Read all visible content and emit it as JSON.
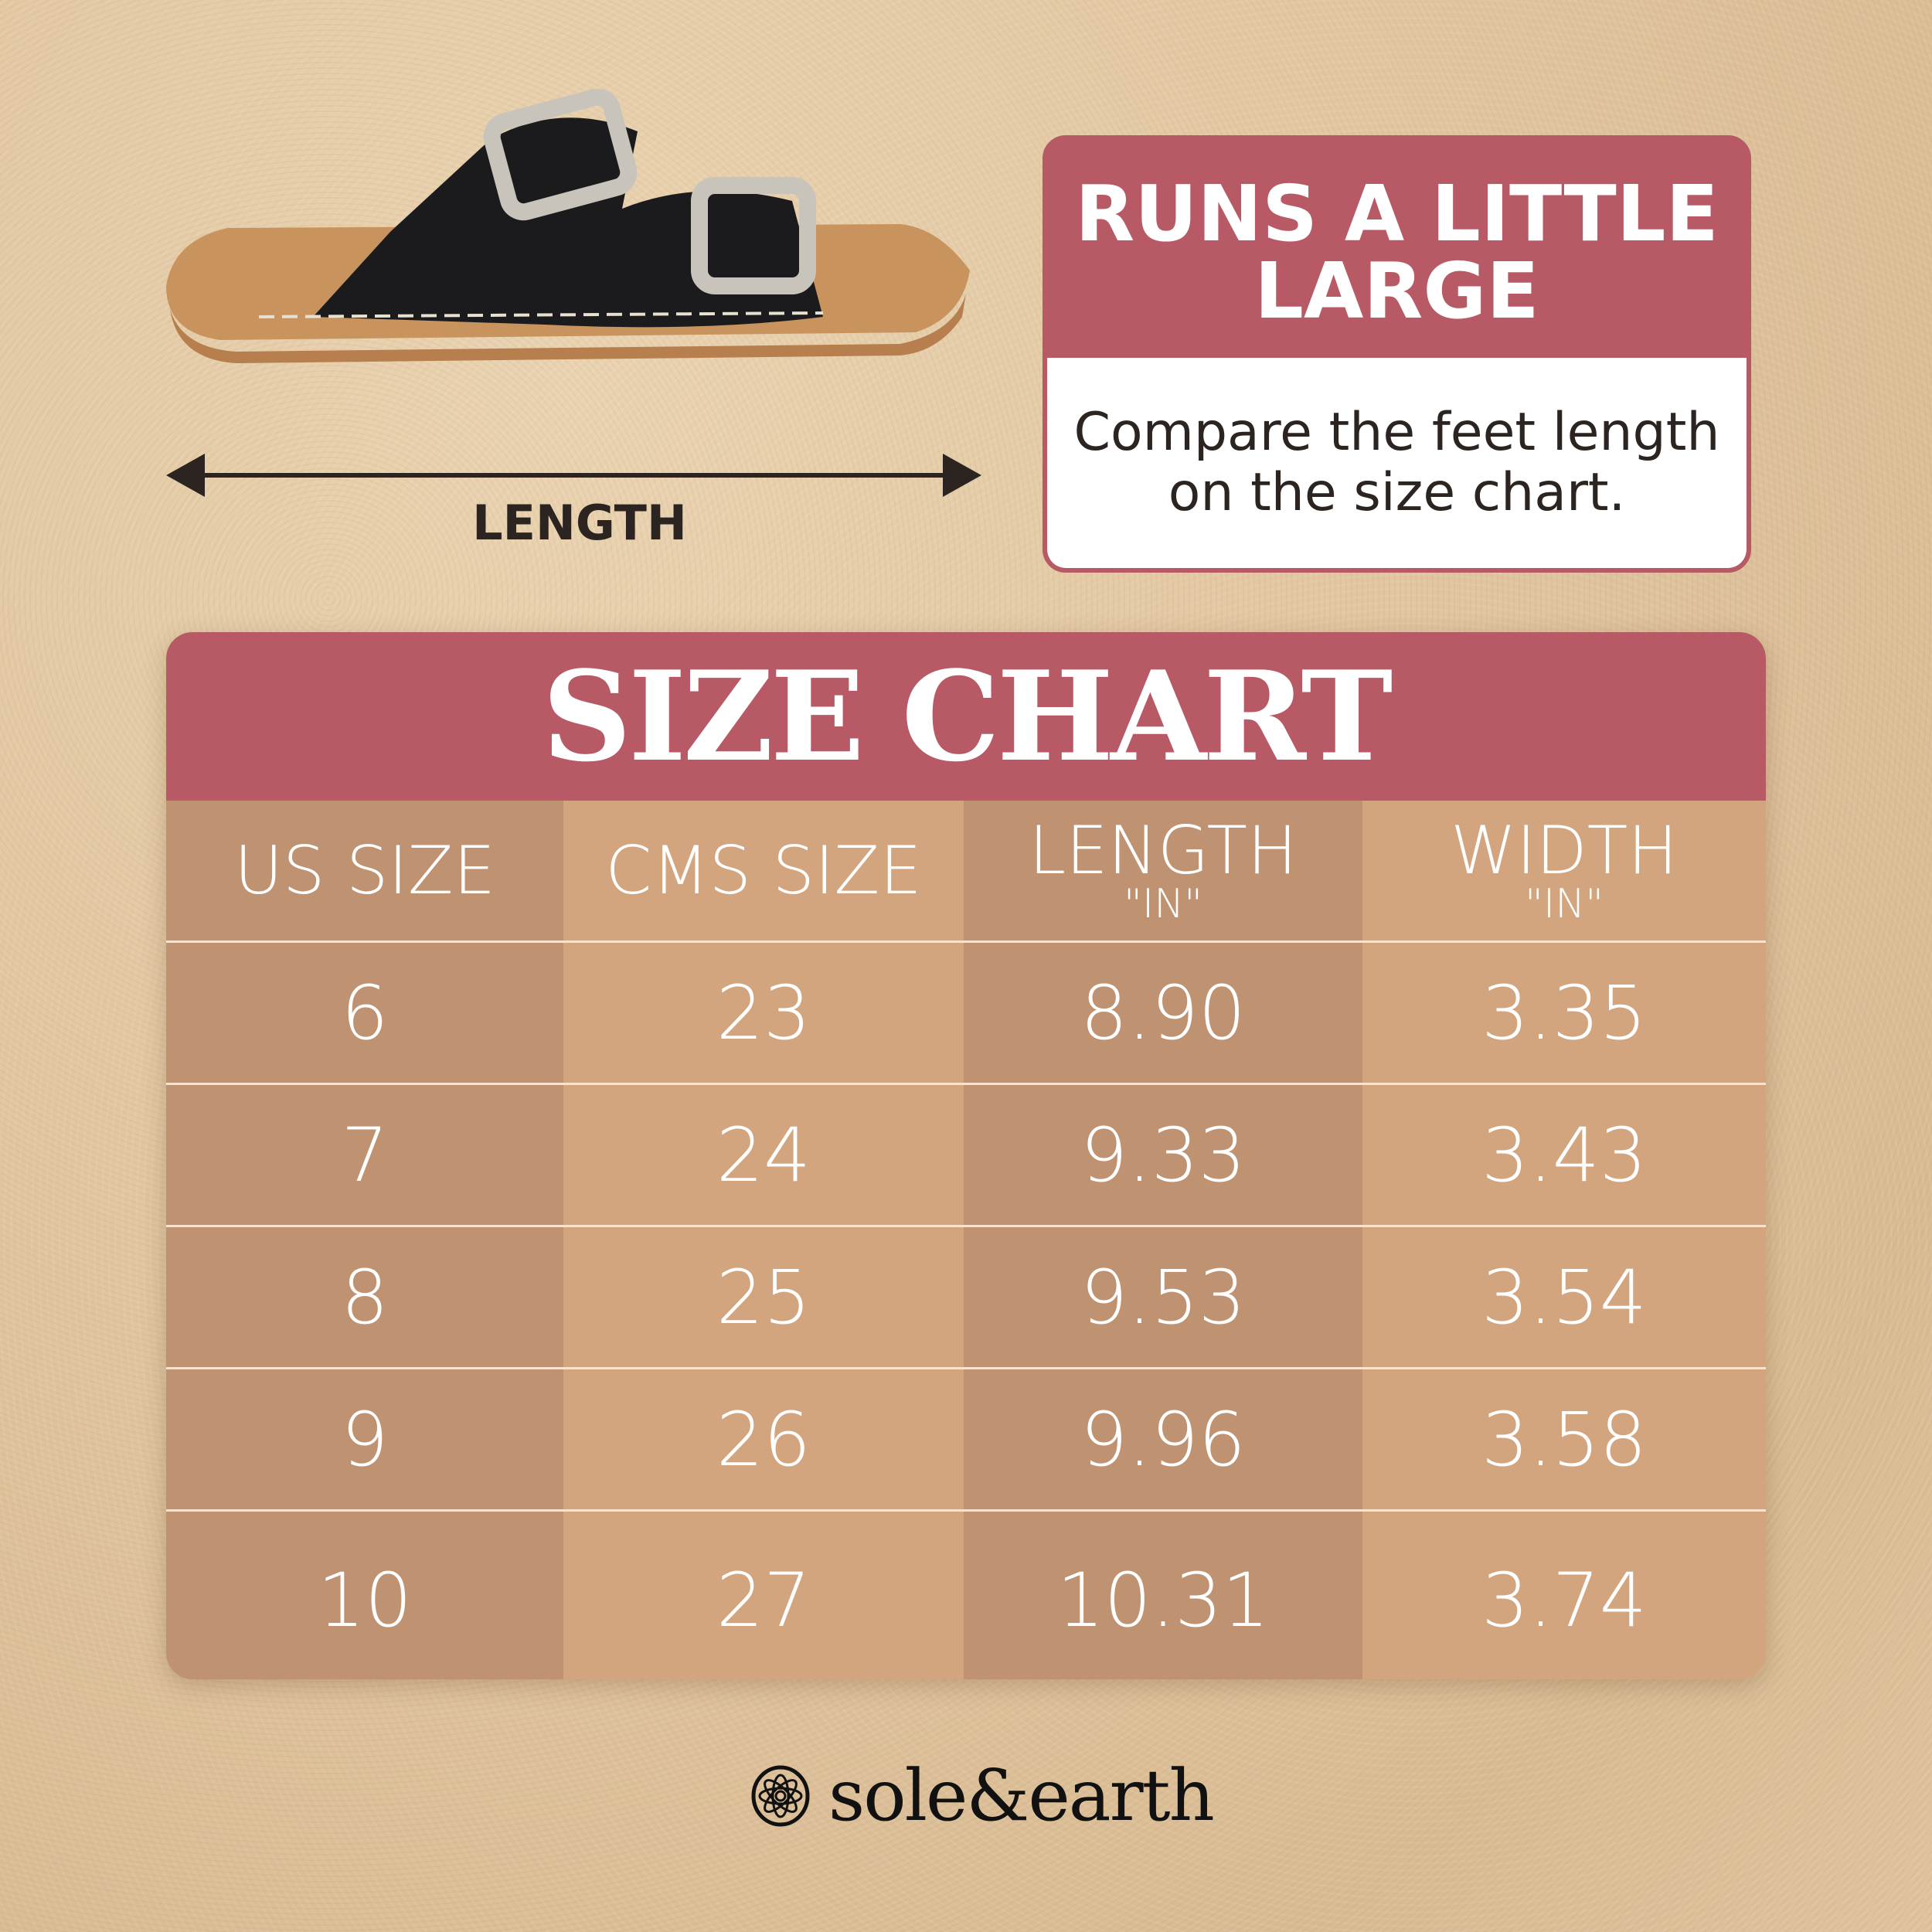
{
  "product": {
    "length_label": "LENGTH"
  },
  "note": {
    "title": "RUNS A LITTLE LARGE",
    "body": "Compare the feet length on the size chart."
  },
  "size_chart": {
    "title": "SIZE CHART",
    "headers": [
      {
        "label": "US SIZE",
        "unit": ""
      },
      {
        "label": "CMS SIZE",
        "unit": ""
      },
      {
        "label": "LENGTH",
        "unit": "\"IN\""
      },
      {
        "label": "WIDTH",
        "unit": "\"IN\""
      }
    ],
    "rows": [
      [
        "6",
        "23",
        "8.90",
        "3.35"
      ],
      [
        "7",
        "24",
        "9.33",
        "3.43"
      ],
      [
        "8",
        "25",
        "9.53",
        "3.54"
      ],
      [
        "9",
        "26",
        "9.96",
        "3.58"
      ],
      [
        "10",
        "27",
        "10.31",
        "3.74"
      ]
    ]
  },
  "brand": {
    "name": "sole&earth"
  },
  "colors": {
    "accent": "#b85a65",
    "column_dark": "#bf9271",
    "column_light": "#d3a57f"
  }
}
